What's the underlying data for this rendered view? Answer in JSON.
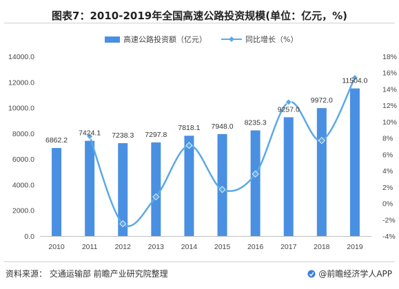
{
  "title": "图表7：2010-2019年全国高速公路投资规模(单位：亿元，%)",
  "legend": {
    "bar_label": "高速公路投资额（亿元）",
    "line_label": "同比增长（%）"
  },
  "footer": {
    "source": "资料来源：  交通运输部 前瞻产业研究院整理",
    "brand": "@前瞻经济学人APP"
  },
  "colors": {
    "bar": "#4a90e2",
    "line": "#5ba8e6"
  },
  "chart_data": {
    "type": "bar",
    "categories": [
      "2010",
      "2011",
      "2012",
      "2013",
      "2014",
      "2015",
      "2016",
      "2017",
      "2018",
      "2019"
    ],
    "series": [
      {
        "name": "高速公路投资额（亿元）",
        "type": "bar",
        "axis": "left",
        "values": [
          6862.2,
          7424.1,
          7238.3,
          7297.8,
          7818.1,
          7948.0,
          8235.3,
          9257.0,
          9972.0,
          11504.0
        ],
        "labels": [
          "6862.2",
          "7424.1",
          "7238.3",
          "7297.8",
          "7818.1",
          "7948.0",
          "8235.3",
          "9257.0",
          "9972.0",
          "11504.0"
        ]
      },
      {
        "name": "同比增长（%）",
        "type": "line",
        "smooth": true,
        "axis": "right",
        "values": [
          null,
          8.2,
          -2.5,
          0.8,
          7.1,
          1.7,
          3.6,
          12.4,
          7.7,
          15.4
        ]
      }
    ],
    "y_left": {
      "min": 0,
      "max": 14000,
      "step": 2000,
      "ticks": [
        "0.0",
        "2000.0",
        "4000.0",
        "6000.0",
        "8000.0",
        "10000.0",
        "12000.0",
        "14000.0"
      ]
    },
    "y_right": {
      "min": -4,
      "max": 18,
      "step": 2,
      "ticks": [
        "-4%",
        "-2%",
        "0%",
        "2%",
        "4%",
        "6%",
        "8%",
        "10%",
        "12%",
        "14%",
        "16%",
        "18%"
      ]
    },
    "grid": false,
    "legend_position": "top-center"
  }
}
